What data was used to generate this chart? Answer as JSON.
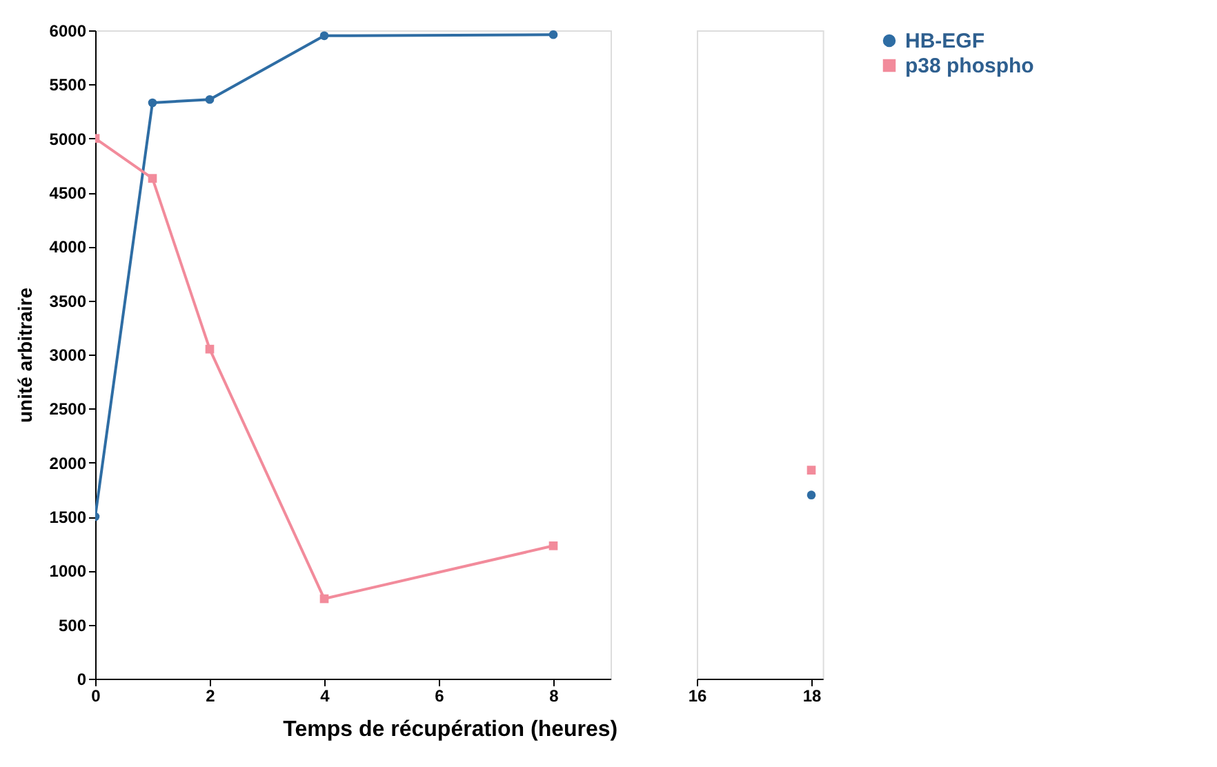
{
  "chart_data": [
    {
      "type": "line",
      "xlabel": "Temps de récupération (heures)",
      "ylabel": "unité arbitraire",
      "x": [
        0,
        1,
        2,
        4,
        8
      ],
      "series": [
        {
          "name": "HB-EGF",
          "color": "#2e6da4",
          "marker": "circle",
          "values": [
            1500,
            5330,
            5360,
            5950,
            5960
          ]
        },
        {
          "name": "p38 phospho",
          "color": "#f28b9b",
          "marker": "square",
          "values": [
            5000,
            4630,
            3050,
            740,
            1230
          ]
        }
      ],
      "xlim": [
        0,
        9
      ],
      "xticks": [
        0,
        2,
        4,
        6,
        8
      ],
      "ylim": [
        0,
        6000
      ],
      "yticks": [
        0,
        500,
        1000,
        1500,
        2000,
        2500,
        3000,
        3500,
        4000,
        4500,
        5000,
        5500,
        6000
      ],
      "grid": false,
      "legend": "right",
      "line_style": "solid"
    },
    {
      "type": "line",
      "x": [
        18
      ],
      "series": [
        {
          "name": "HB-EGF",
          "color": "#2e6da4",
          "marker": "circle",
          "values": [
            1700
          ]
        },
        {
          "name": "p38 phospho",
          "color": "#f28b9b",
          "marker": "square",
          "values": [
            1930
          ]
        }
      ],
      "xlim": [
        16,
        18.2
      ],
      "xticks": [
        16,
        18
      ],
      "ylim": [
        0,
        6000
      ],
      "tick_labels": "x",
      "grid": false,
      "legend": "right",
      "line_style": "solid"
    }
  ]
}
